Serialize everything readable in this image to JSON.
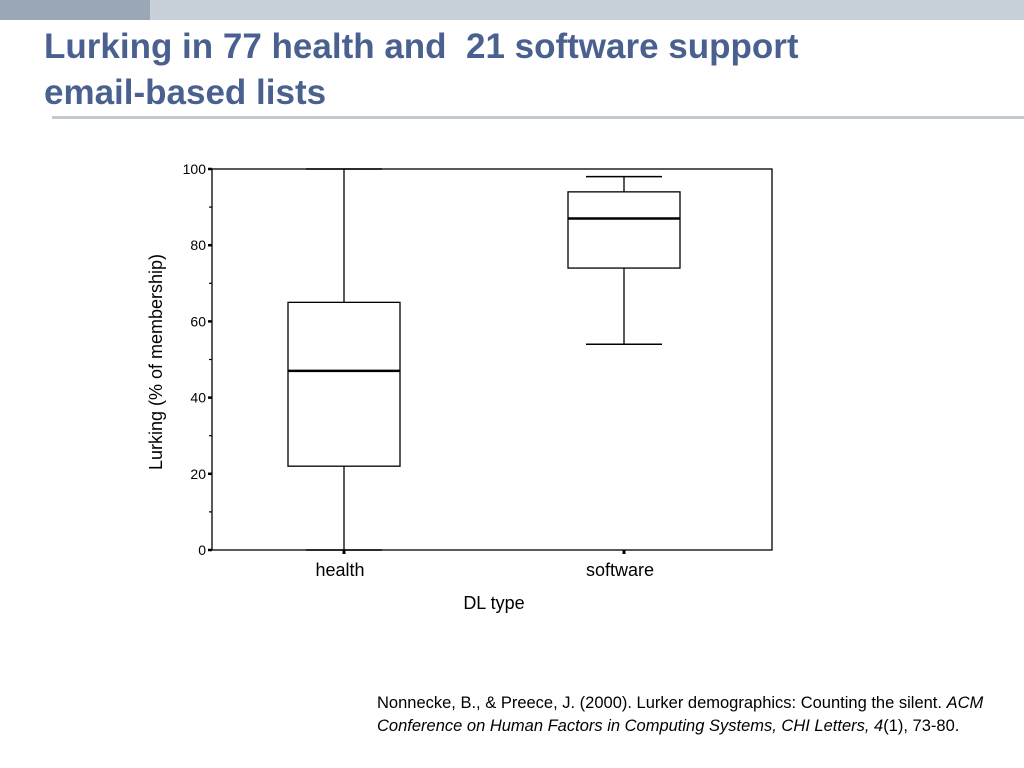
{
  "slide": {
    "title_lines": [
      "Lurking in 77 health and  21 software support",
      "email-based lists"
    ],
    "citation": {
      "authors": "Nonnecke, B., & Preece, J. (2000). Lurker demographics: Counting the silent. ",
      "journal": "ACM Conference on Human Factors in Computing Systems, CHI Letters, 4",
      "issue_pages": "(1), 73-80."
    },
    "colors": {
      "title": "#4a6190",
      "topbar": "#c8d0da",
      "rule": "#c3c9d1"
    }
  },
  "chart_data": {
    "type": "boxplot",
    "title": "",
    "xlabel": "DL type",
    "ylabel": "Lurking (% of membership)",
    "ylim": [
      0,
      100
    ],
    "yticks": [
      0,
      20,
      40,
      60,
      80,
      100
    ],
    "grid": false,
    "categories": [
      "health",
      "software"
    ],
    "boxes": [
      {
        "category": "health",
        "min": 0,
        "q1": 22,
        "median": 47,
        "q3": 65,
        "max": 100
      },
      {
        "category": "software",
        "min": 54,
        "q1": 74,
        "median": 87,
        "q3": 94,
        "max": 98
      }
    ]
  }
}
